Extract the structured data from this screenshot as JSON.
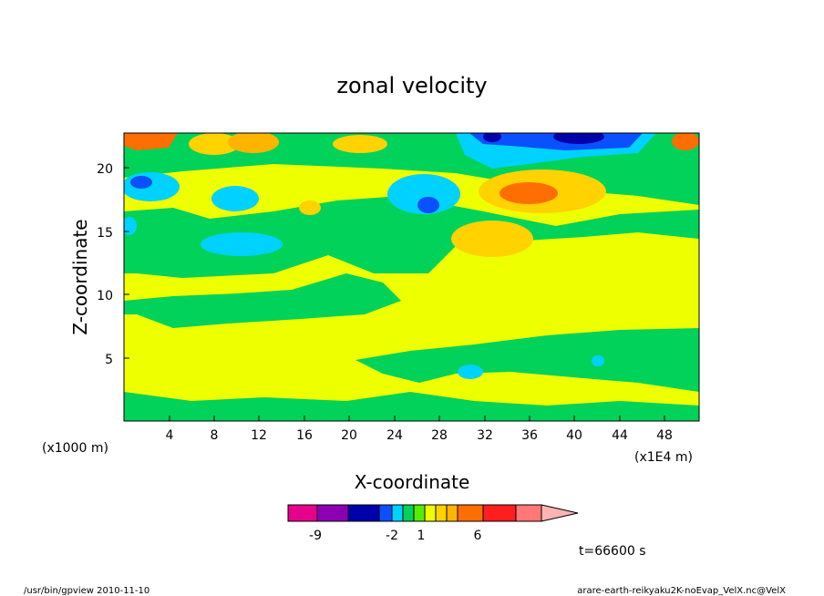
{
  "chart_data": {
    "type": "heatmap",
    "title": "zonal velocity",
    "xlabel": "X-coordinate",
    "ylabel": "Z-coordinate",
    "x_unit_label": "(x1E4 m)",
    "y_unit_label": "(x1000 m)",
    "xlim": [
      0,
      51
    ],
    "ylim": [
      0,
      22.7
    ],
    "x_ticks": [
      4,
      8,
      12,
      16,
      20,
      24,
      28,
      32,
      36,
      40,
      44,
      48
    ],
    "y_ticks": [
      5,
      10,
      15,
      20
    ],
    "time_label": "t=66600 s",
    "colorbar": {
      "levels": [
        -12,
        -9,
        -6,
        -3,
        -2,
        -1,
        0,
        1,
        2,
        3,
        4,
        6,
        8,
        10
      ],
      "tick_labels": [
        "-9",
        "-2",
        "1",
        "6"
      ],
      "colors": [
        "#e6008c",
        "#8c00b4",
        "#0000aa",
        "#0a50ff",
        "#00d2ff",
        "#00d25a",
        "#55ee00",
        "#eeff00",
        "#ffd200",
        "#ffb400",
        "#ff6e00",
        "#ff1e1e",
        "#ff7777",
        "#ffb4b4"
      ],
      "extend": "max"
    },
    "fields": [
      {
        "level": "0..1",
        "color": "#eeff00"
      },
      {
        "level": "-1..0",
        "color": "#00d25a"
      },
      {
        "level": "-2..-1",
        "color": "#00d2ff"
      },
      {
        "level": "-3..-2",
        "color": "#0a50ff"
      },
      {
        "level": "1..2",
        "color": "#ffd200"
      },
      {
        "level": "2..4",
        "color": "#ff6e00"
      }
    ]
  },
  "footer": {
    "left": "/usr/bin/gpview  2010-11-10",
    "right": "arare-earth-reikyaku2K-noEvap_VelX.nc@VelX"
  }
}
